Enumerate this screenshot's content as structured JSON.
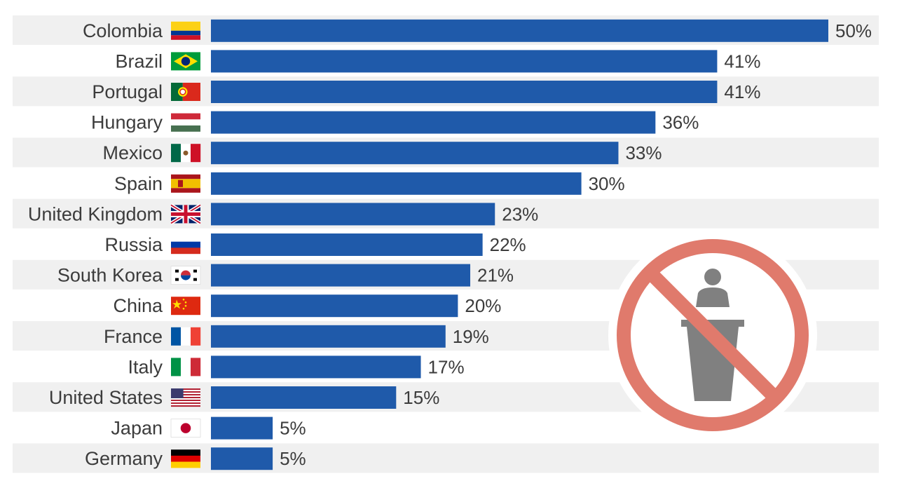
{
  "chart_data": {
    "type": "bar",
    "orientation": "horizontal",
    "categories": [
      "Colombia",
      "Brazil",
      "Portugal",
      "Hungary",
      "Mexico",
      "Spain",
      "United Kingdom",
      "Russia",
      "South Korea",
      "China",
      "France",
      "Italy",
      "United States",
      "Japan",
      "Germany"
    ],
    "values": [
      50,
      41,
      41,
      36,
      33,
      30,
      23,
      22,
      21,
      20,
      19,
      17,
      15,
      5,
      5
    ],
    "value_labels": [
      "50%",
      "41%",
      "41%",
      "36%",
      "33%",
      "30%",
      "23%",
      "22%",
      "21%",
      "20%",
      "19%",
      "17%",
      "15%",
      "5%",
      "5%"
    ],
    "unit": "%",
    "xlim": [
      0,
      50
    ],
    "grid": false,
    "colors": {
      "bar": "#1f5aaa",
      "row_band": "#f0f0f0",
      "no_sign": "#e07a6c",
      "figure": "#808080"
    },
    "flags": [
      "colombia-flag",
      "brazil-flag",
      "portugal-flag",
      "hungary-flag",
      "mexico-flag",
      "spain-flag",
      "uk-flag",
      "russia-flag",
      "south-korea-flag",
      "china-flag",
      "france-flag",
      "italy-flag",
      "usa-flag",
      "japan-flag",
      "germany-flag"
    ],
    "icons": {
      "overlay": "no-politician-icon"
    }
  }
}
